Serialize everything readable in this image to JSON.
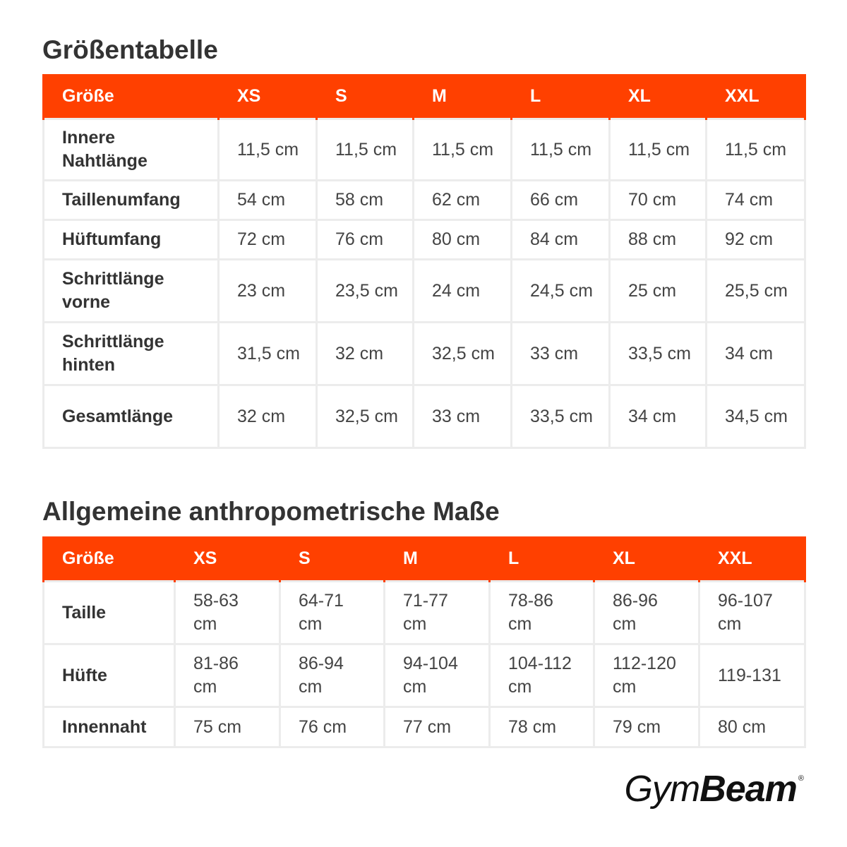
{
  "size_chart": {
    "title": "Größentabelle",
    "headers": [
      "Größe",
      "XS",
      "S",
      "M",
      "L",
      "XL",
      "XXL"
    ],
    "rows": [
      {
        "label": "Innere Nahtlänge",
        "values": [
          "11,5 cm",
          "11,5 cm",
          "11,5 cm",
          "11,5 cm",
          "11,5 cm",
          "11,5 cm"
        ]
      },
      {
        "label": "Taillenumfang",
        "values": [
          "54 cm",
          "58 cm",
          "62 cm",
          "66 cm",
          "70 cm",
          "74 cm"
        ]
      },
      {
        "label": "Hüftumfang",
        "values": [
          "72 cm",
          "76 cm",
          "80 cm",
          "84 cm",
          "88 cm",
          "92 cm"
        ]
      },
      {
        "label": "Schrittlänge vorne",
        "values": [
          "23 cm",
          "23,5 cm",
          "24 cm",
          "24,5 cm",
          "25 cm",
          "25,5 cm"
        ]
      },
      {
        "label": "Schrittlänge hinten",
        "values": [
          "31,5 cm",
          "32 cm",
          "32,5 cm",
          "33 cm",
          "33,5 cm",
          "34 cm"
        ]
      },
      {
        "label": "Gesamtlänge",
        "values": [
          "32 cm",
          "32,5 cm",
          "33 cm",
          "33,5 cm",
          "34 cm",
          "34,5 cm"
        ]
      }
    ]
  },
  "anthropometric": {
    "title": "Allgemeine anthropometrische Maße",
    "headers": [
      "Größe",
      "XS",
      "S",
      "M",
      "L",
      "XL",
      "XXL"
    ],
    "rows": [
      {
        "label": "Taille",
        "values": [
          "58-63 cm",
          "64-71 cm",
          "71-77 cm",
          "78-86 cm",
          "86-96 cm",
          "96-107 cm"
        ]
      },
      {
        "label": "Hüfte",
        "values": [
          "81-86 cm",
          "86-94 cm",
          "94-104 cm",
          "104-112 cm",
          "112-120 cm",
          "119-131"
        ]
      },
      {
        "label": "Innennaht",
        "values": [
          "75 cm",
          "76 cm",
          "77 cm",
          "78 cm",
          "79 cm",
          "80 cm"
        ]
      }
    ]
  },
  "brand": {
    "name_light": "Gym",
    "name_bold": "Beam",
    "registered": "®"
  },
  "colors": {
    "header_bg": "#ff4000",
    "header_text": "#ffffff",
    "cell_border": "#ececec"
  }
}
